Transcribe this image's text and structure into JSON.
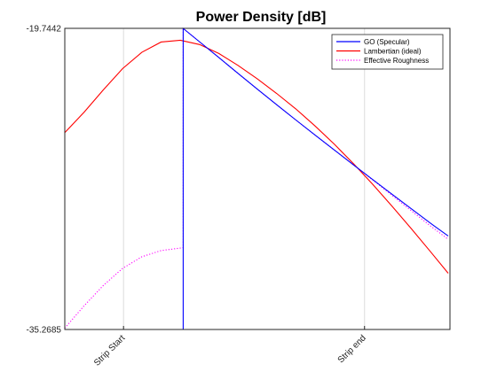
{
  "chart_data": {
    "type": "line",
    "title": "Power Density [dB]",
    "xlabel": "",
    "ylabel": "",
    "x_range": [
      0,
      1
    ],
    "ylim": [
      -35.2685,
      -19.7442
    ],
    "y_ticks": [
      -35.2685,
      -19.7442
    ],
    "y_tick_labels": [
      "-35.2685",
      "-19.7442"
    ],
    "x_ticks": [
      0.1525,
      0.7782
    ],
    "x_tick_labels": [
      "Strip Start",
      "Strip end"
    ],
    "grid": "x-only",
    "legend_position": "top-right",
    "specular_x": 0.3074,
    "series": [
      {
        "name": "GO (Specular)",
        "color": "#0000ff",
        "style": "solid",
        "x": [
          0.3074,
          0.3074,
          0.35,
          0.4,
          0.45,
          0.5,
          0.55,
          0.6,
          0.65,
          0.7,
          0.75,
          0.8,
          0.85,
          0.9,
          0.95,
          0.9954
        ],
        "y": [
          -35.27,
          -19.75,
          -20.44,
          -21.25,
          -22.07,
          -22.88,
          -23.68,
          -24.47,
          -25.25,
          -26.02,
          -26.79,
          -27.55,
          -28.3,
          -29.05,
          -29.8,
          -30.45
        ]
      },
      {
        "name": "Lambertian (ideal)",
        "color": "#ff0000",
        "style": "solid",
        "x": [
          0,
          0.05,
          0.1,
          0.15,
          0.2,
          0.25,
          0.3,
          0.35,
          0.4,
          0.45,
          0.5,
          0.55,
          0.6,
          0.65,
          0.7,
          0.75,
          0.8,
          0.85,
          0.9,
          0.95,
          0.9954
        ],
        "y": [
          -25.12,
          -24.07,
          -22.92,
          -21.82,
          -20.98,
          -20.45,
          -20.36,
          -20.58,
          -21.04,
          -21.66,
          -22.35,
          -23.1,
          -23.9,
          -24.78,
          -25.72,
          -26.73,
          -27.8,
          -28.92,
          -30.08,
          -31.27,
          -32.37
        ]
      },
      {
        "name": "Effective Roughness",
        "color": "#ff00ff",
        "style": "dotted",
        "x": [
          0,
          0.05,
          0.1,
          0.15,
          0.2,
          0.25,
          0.3,
          0.3074,
          0.3074,
          0.35,
          0.4,
          0.45,
          0.5,
          0.55,
          0.6,
          0.65,
          0.7,
          0.75,
          0.8,
          0.85,
          0.9,
          0.95,
          0.9954
        ],
        "y": [
          -35.2,
          -34.05,
          -33.0,
          -32.12,
          -31.52,
          -31.2,
          -31.07,
          -31.05,
          -19.75,
          -20.44,
          -21.25,
          -22.07,
          -22.88,
          -23.68,
          -24.47,
          -25.25,
          -26.02,
          -26.79,
          -27.57,
          -28.36,
          -29.15,
          -29.94,
          -30.62
        ]
      }
    ]
  }
}
